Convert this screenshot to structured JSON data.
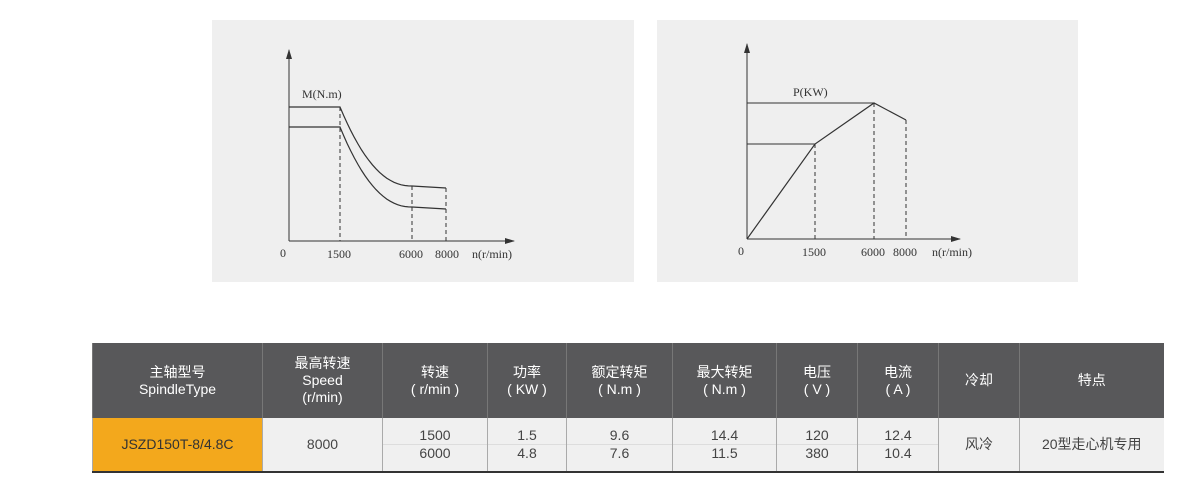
{
  "chart_data": [
    {
      "type": "line",
      "ylabel": "M(N.m)",
      "xlabel": "n(r/min)",
      "origin_label": "0",
      "x_ticks": [
        "1500",
        "6000",
        "8000"
      ],
      "series": [
        {
          "x": [
            0,
            1500,
            6000,
            8000
          ],
          "shape": "constant torque to 1500 then hyperbolic decrease",
          "level": "upper"
        },
        {
          "x": [
            0,
            1500,
            6000,
            8000
          ],
          "shape": "constant torque to 1500 then hyperbolic decrease",
          "level": "lower"
        }
      ],
      "grid": false,
      "dashed_guides": [
        1500,
        6000,
        8000
      ]
    },
    {
      "type": "line",
      "ylabel": "P(KW)",
      "xlabel": "n(r/min)",
      "origin_label": "0",
      "x_ticks": [
        "1500",
        "6000",
        "8000"
      ],
      "series": [
        {
          "x": [
            0,
            1500,
            6000,
            8000
          ],
          "shape": "linear rise to 1500, rise to peak at 6000, drop at 8000"
        }
      ],
      "grid": false,
      "dashed_guides": [
        1500,
        6000,
        8000
      ]
    }
  ],
  "table": {
    "headers": [
      [
        "主轴型号",
        "SpindleType"
      ],
      [
        "最高转速",
        "Speed",
        "(r/min)"
      ],
      [
        "转速",
        "( r/min )"
      ],
      [
        "功率",
        "( KW )"
      ],
      [
        "额定转矩",
        "( N.m )"
      ],
      [
        "最大转矩",
        "( N.m )"
      ],
      [
        "电压",
        "( V )"
      ],
      [
        "电流",
        "( A )"
      ],
      [
        "冷却"
      ],
      [
        "特点"
      ]
    ],
    "model": "JSZD150T-8/4.8C",
    "max_speed": "8000",
    "rows": [
      [
        "1500",
        "1.5",
        "9.6",
        "14.4",
        "120",
        "12.4"
      ],
      [
        "6000",
        "4.8",
        "7.6",
        "11.5",
        "380",
        "10.4"
      ]
    ],
    "cooling": "风冷",
    "feature": "20型走心机专用"
  },
  "colors": {
    "header_bg": "#58585a",
    "model_bg": "#f3a81c",
    "panel_bg": "#efefef"
  }
}
